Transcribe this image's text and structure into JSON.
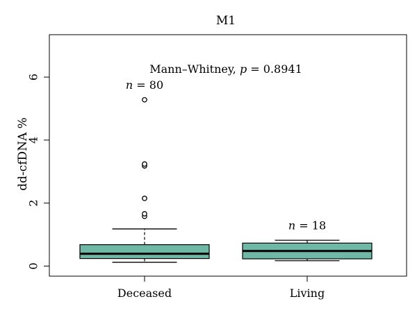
{
  "chart_data": {
    "type": "box",
    "title": "M1",
    "ylabel": "dd-cfDNA %",
    "xlabel": "",
    "categories": [
      "Deceased",
      "Living"
    ],
    "ylim": [
      -0.3,
      7.5
    ],
    "yticks": [
      0,
      2,
      4,
      6
    ],
    "grid": false,
    "box_color": "#6fb8a6",
    "annotation": {
      "prefix": "Mann–Whitney, ",
      "p_symbol": "p",
      "equals": " = ",
      "p_value": "0.8941"
    },
    "boxes": [
      {
        "category": "Deceased",
        "n_label": "n",
        "n_value": "80",
        "whisker_low": 0.12,
        "q1": 0.24,
        "median": 0.39,
        "q3": 0.68,
        "whisker_high": 1.18,
        "outliers": [
          1.58,
          1.66,
          2.15,
          3.18,
          3.24,
          5.28
        ]
      },
      {
        "category": "Living",
        "n_label": "n",
        "n_value": "18",
        "whisker_low": 0.17,
        "q1": 0.23,
        "median": 0.48,
        "q3": 0.73,
        "whisker_high": 0.82,
        "outliers": []
      }
    ]
  }
}
